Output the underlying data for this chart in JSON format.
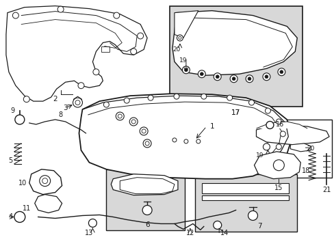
{
  "bg_color": "#ffffff",
  "line_color": "#1a1a1a",
  "box_fill": "#d8d8d8",
  "figsize": [
    4.89,
    3.6
  ],
  "dpi": 100
}
